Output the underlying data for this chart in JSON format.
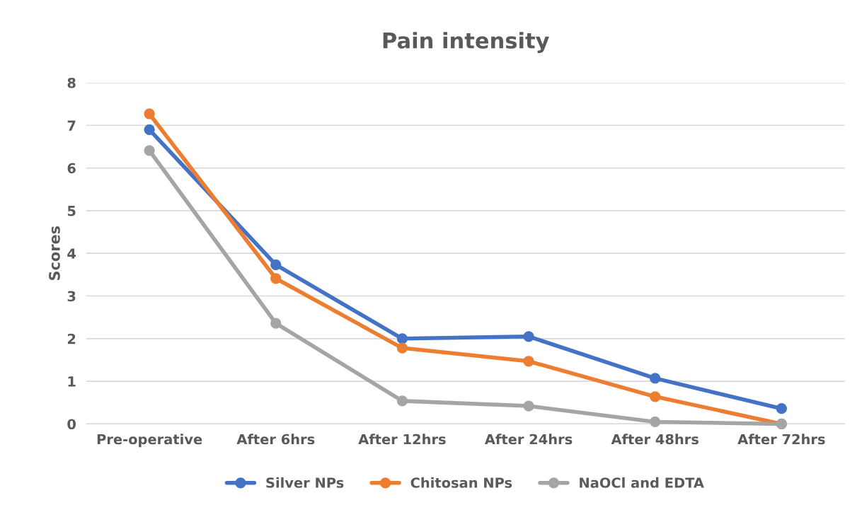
{
  "chart_data": {
    "type": "line",
    "title": "Pain intensity",
    "ylabel": "Scores",
    "categories": [
      "Pre-operative",
      "After 6hrs",
      "After 12hrs",
      "After 24hrs",
      "After 48hrs",
      "After 72hrs"
    ],
    "series": [
      {
        "name": "Silver NPs",
        "color": "#4472c4",
        "values": [
          6.9,
          3.73,
          2.0,
          2.05,
          1.07,
          0.36
        ]
      },
      {
        "name": "Chitosan NPs",
        "color": "#ed7d31",
        "values": [
          7.27,
          3.41,
          1.78,
          1.47,
          0.64,
          0.0
        ]
      },
      {
        "name": "NaOCl and EDTA",
        "color": "#a5a5a5",
        "values": [
          6.41,
          2.36,
          0.54,
          0.42,
          0.05,
          0.0
        ]
      }
    ],
    "ylim": [
      0,
      8
    ],
    "yticks": [
      0,
      1,
      2,
      3,
      4,
      5,
      6,
      7,
      8
    ],
    "grid": "y",
    "legend": "bottom",
    "marker": "circle",
    "line_style": "solid"
  }
}
